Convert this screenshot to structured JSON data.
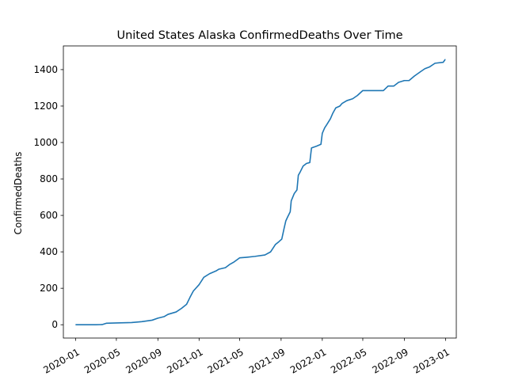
{
  "chart_data": {
    "type": "line",
    "title": "United States Alaska ConfirmedDeaths Over Time",
    "xlabel": "",
    "ylabel": "ConfirmedDeaths",
    "xlim": [
      "2019-11-26",
      "2023-02-02"
    ],
    "ylim": [
      -73,
      1530
    ],
    "grid": false,
    "legend": "none",
    "line_color": "#1f77b4",
    "x_ticks": [
      "2020-01",
      "2020-05",
      "2020-09",
      "2021-01",
      "2021-05",
      "2021-09",
      "2022-01",
      "2022-05",
      "2022-09",
      "2023-01"
    ],
    "y_ticks": [
      0,
      200,
      400,
      600,
      800,
      1000,
      1200,
      1400
    ],
    "series": [
      {
        "values": [
          [
            "2020-01-01",
            0
          ],
          [
            "2020-03-01",
            0
          ],
          [
            "2020-03-20",
            1
          ],
          [
            "2020-04-01",
            8
          ],
          [
            "2020-05-01",
            10
          ],
          [
            "2020-06-15",
            12
          ],
          [
            "2020-07-15",
            17
          ],
          [
            "2020-08-15",
            25
          ],
          [
            "2020-09-01",
            36
          ],
          [
            "2020-09-20",
            45
          ],
          [
            "2020-10-01",
            57
          ],
          [
            "2020-10-25",
            70
          ],
          [
            "2020-11-10",
            90
          ],
          [
            "2020-11-25",
            112
          ],
          [
            "2020-12-05",
            150
          ],
          [
            "2020-12-15",
            185
          ],
          [
            "2021-01-01",
            220
          ],
          [
            "2021-01-15",
            260
          ],
          [
            "2021-02-01",
            280
          ],
          [
            "2021-02-20",
            295
          ],
          [
            "2021-03-01",
            305
          ],
          [
            "2021-03-20",
            313
          ],
          [
            "2021-04-01",
            330
          ],
          [
            "2021-04-15",
            345
          ],
          [
            "2021-05-01",
            367
          ],
          [
            "2021-05-20",
            370
          ],
          [
            "2021-06-15",
            375
          ],
          [
            "2021-07-15",
            383
          ],
          [
            "2021-08-01",
            400
          ],
          [
            "2021-08-15",
            440
          ],
          [
            "2021-08-25",
            455
          ],
          [
            "2021-09-03",
            470
          ],
          [
            "2021-09-10",
            530
          ],
          [
            "2021-09-15",
            570
          ],
          [
            "2021-09-20",
            590
          ],
          [
            "2021-09-28",
            620
          ],
          [
            "2021-10-01",
            680
          ],
          [
            "2021-10-10",
            720
          ],
          [
            "2021-10-18",
            740
          ],
          [
            "2021-10-22",
            820
          ],
          [
            "2021-10-28",
            840
          ],
          [
            "2021-11-05",
            870
          ],
          [
            "2021-11-15",
            885
          ],
          [
            "2021-11-25",
            890
          ],
          [
            "2021-11-30",
            970
          ],
          [
            "2021-12-15",
            980
          ],
          [
            "2021-12-28",
            990
          ],
          [
            "2022-01-01",
            1050
          ],
          [
            "2022-01-08",
            1080
          ],
          [
            "2022-01-15",
            1100
          ],
          [
            "2022-01-25",
            1130
          ],
          [
            "2022-02-01",
            1160
          ],
          [
            "2022-02-10",
            1190
          ],
          [
            "2022-02-22",
            1200
          ],
          [
            "2022-03-01",
            1215
          ],
          [
            "2022-03-15",
            1230
          ],
          [
            "2022-04-01",
            1240
          ],
          [
            "2022-04-15",
            1258
          ],
          [
            "2022-05-01",
            1285
          ],
          [
            "2022-06-01",
            1285
          ],
          [
            "2022-07-01",
            1285
          ],
          [
            "2022-07-15",
            1310
          ],
          [
            "2022-08-01",
            1310
          ],
          [
            "2022-08-15",
            1330
          ],
          [
            "2022-09-01",
            1340
          ],
          [
            "2022-09-15",
            1340
          ],
          [
            "2022-10-01",
            1365
          ],
          [
            "2022-10-20",
            1390
          ],
          [
            "2022-11-01",
            1405
          ],
          [
            "2022-11-15",
            1415
          ],
          [
            "2022-12-01",
            1435
          ],
          [
            "2022-12-25",
            1440
          ],
          [
            "2022-12-31",
            1455
          ],
          [
            "2023-01-01",
            1455
          ]
        ]
      }
    ]
  }
}
